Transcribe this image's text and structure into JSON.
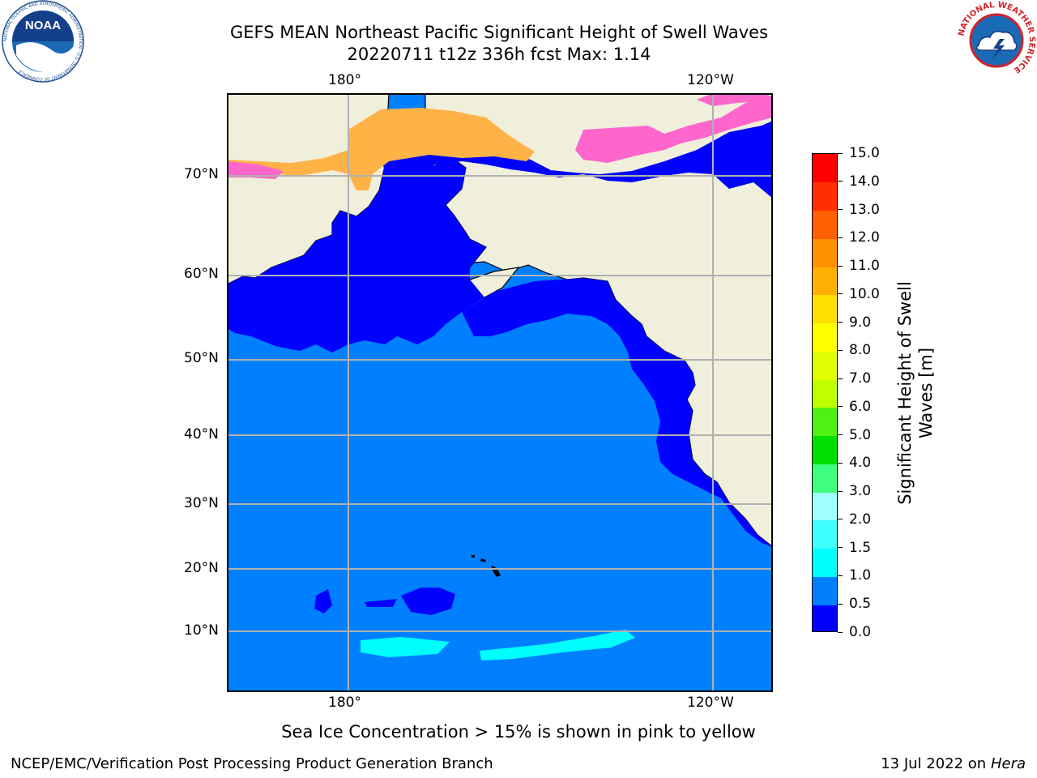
{
  "header": {
    "title_line1": "GEFS MEAN Northeast Pacific Significant Height of Swell Waves",
    "title_line2": "20220711 t12z 336h fcst   Max: 1.14"
  },
  "logos": {
    "left": "NOAA",
    "left_ring_text": "NATIONAL OCEANIC AND ATMOSPHERIC ADMINISTRATION · U.S. DEPARTMENT OF COMMERCE",
    "right_ring_text": "NATIONAL WEATHER SERVICE"
  },
  "map": {
    "lon_labels": [
      "180°",
      "120°W"
    ],
    "lat_labels": [
      "70°N",
      "60°N",
      "50°N",
      "40°N",
      "30°N",
      "20°N",
      "10°N"
    ],
    "colors": {
      "land": "#efefdc",
      "ocean_05_10": "#0080ff",
      "ocean_00_05": "#0000ff",
      "ocean_10_15": "#00ffff",
      "grid": "#b0b0b0"
    }
  },
  "colorbar": {
    "label_line1": "Significant Height of Swell",
    "label_line2": "Waves [m]",
    "ticks": [
      "0.0",
      "0.5",
      "1.0",
      "1.5",
      "2.0",
      "3.0",
      "4.0",
      "5.0",
      "6.0",
      "7.0",
      "8.0",
      "9.0",
      "10.0",
      "11.0",
      "12.0",
      "13.0",
      "14.0",
      "15.0"
    ],
    "colors": [
      "#0000ff",
      "#0080ff",
      "#00ffff",
      "#40ffff",
      "#a0ffff",
      "#40ff80",
      "#00e000",
      "#50f010",
      "#c0ff00",
      "#e0ff00",
      "#ffff00",
      "#ffe000",
      "#ffb000",
      "#ff9000",
      "#ff6000",
      "#ff3000",
      "#ff0000"
    ]
  },
  "footer": {
    "note": "Sea Ice Concentration > 15% is shown in pink to yellow",
    "credit": "NCEP/EMC/Verification Post Processing Product Generation Branch",
    "date": "13 Jul 2022 on ",
    "machine": "Hera"
  }
}
